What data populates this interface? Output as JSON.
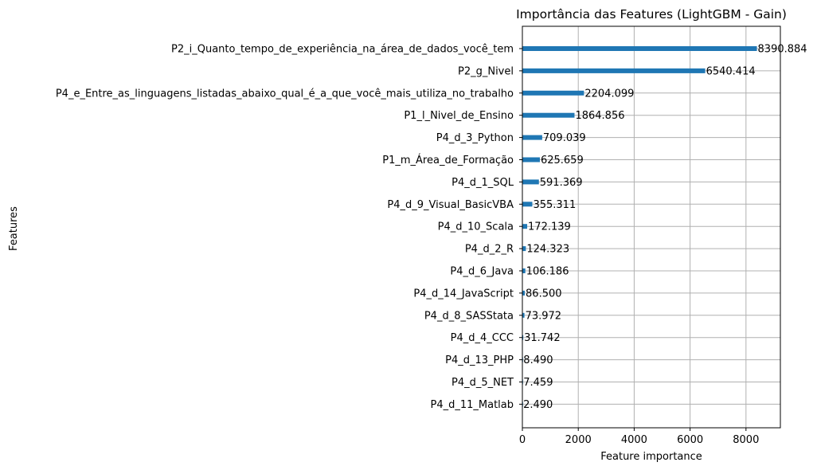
{
  "chart_data": {
    "type": "bar",
    "orientation": "horizontal",
    "title": "Importância das Features (LightGBM - Gain)",
    "xlabel": "Feature importance",
    "ylabel": "Features",
    "xlim": [
      0,
      9230
    ],
    "xticks": [
      0,
      2000,
      4000,
      6000,
      8000
    ],
    "grid": true,
    "bar_color": "#1f77b4",
    "categories": [
      "P2_i_Quanto_tempo_de_experiência_na_área_de_dados_você_tem",
      "P2_g_Nivel",
      "P4_e_Entre_as_linguagens_listadas_abaixo_qual_é_a_que_você_mais_utiliza_no_trabalho",
      "P1_l_Nivel_de_Ensino",
      "P4_d_3_Python",
      "P1_m_Área_de_Formação",
      "P4_d_1_SQL",
      "P4_d_9_Visual_BasicVBA",
      "P4_d_10_Scala",
      "P4_d_2_R",
      "P4_d_6_Java",
      "P4_d_14_JavaScript",
      "P4_d_8_SASStata",
      "P4_d_4_CCC",
      "P4_d_13_PHP",
      "P4_d_5_NET",
      "P4_d_11_Matlab"
    ],
    "values": [
      8390.884,
      6540.414,
      2204.099,
      1864.856,
      709.039,
      625.659,
      591.369,
      355.311,
      172.139,
      124.323,
      106.186,
      86.5,
      73.972,
      31.742,
      8.49,
      7.459,
      2.49
    ],
    "value_labels": [
      "8390.884",
      "6540.414",
      "2204.099",
      "1864.856",
      "709.039",
      "625.659",
      "591.369",
      "355.311",
      "172.139",
      "124.323",
      "106.186",
      "86.500",
      "73.972",
      "31.742",
      "8.490",
      "7.459",
      "2.490"
    ]
  }
}
